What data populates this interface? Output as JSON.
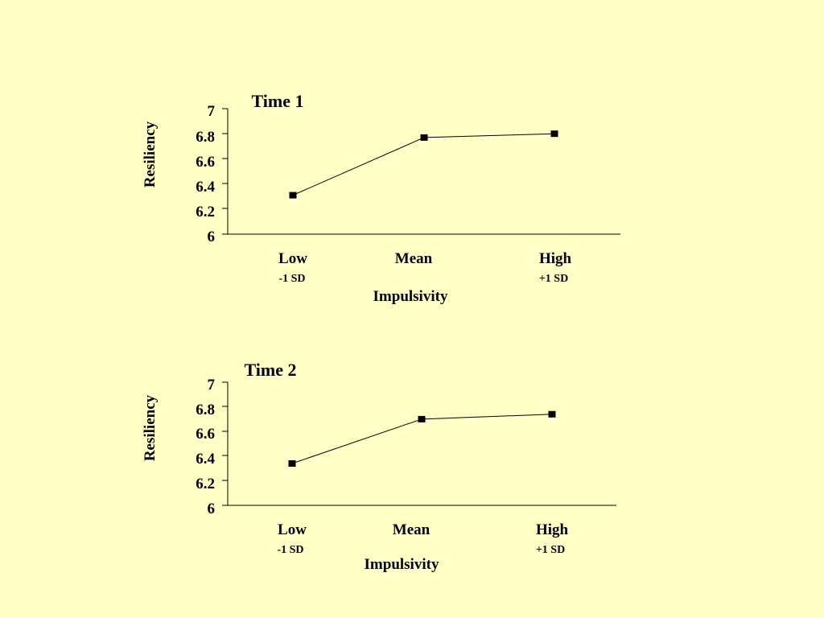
{
  "colors": {
    "background": "#FFFFC6",
    "line": "#000000",
    "marker": "#000000"
  },
  "chart_data": [
    {
      "type": "line",
      "title": "Time 1",
      "xlabel": "Impulsivity",
      "ylabel": "Resiliency",
      "categories": [
        "Low",
        "Mean",
        "High"
      ],
      "category_sublabels": [
        "-1 SD",
        "",
        "+1 SD"
      ],
      "yticks": [
        "7",
        "6.8",
        "6.6",
        "6.4",
        "6.2",
        "6"
      ],
      "ylim": [
        6,
        7
      ],
      "grid": false,
      "marker": "square",
      "series": [
        {
          "values": [
            6.31,
            6.77,
            6.8
          ]
        }
      ]
    },
    {
      "type": "line",
      "title": "Time 2",
      "xlabel": "Impulsivity",
      "ylabel": "Resiliency",
      "categories": [
        "Low",
        "Mean",
        "High"
      ],
      "category_sublabels": [
        "-1 SD",
        "",
        "+1 SD"
      ],
      "yticks": [
        "7",
        "6.8",
        "6.6",
        "6.4",
        "6.2",
        "6"
      ],
      "ylim": [
        6,
        7
      ],
      "grid": false,
      "marker": "square",
      "series": [
        {
          "values": [
            6.34,
            6.7,
            6.74
          ]
        }
      ]
    }
  ]
}
